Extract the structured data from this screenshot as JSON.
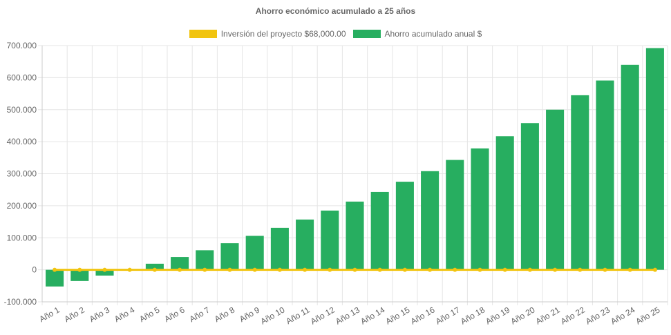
{
  "chart_data": {
    "type": "bar",
    "title": "Ahorro económico acumulado a 25 años",
    "categories": [
      "Año 1",
      "Año 2",
      "Año 3",
      "Año 4",
      "Año 5",
      "Año 6",
      "Año 7",
      "Año 8",
      "Año 9",
      "Año 10",
      "Año 11",
      "Año 12",
      "Año 13",
      "Año 14",
      "Año 15",
      "Año 16",
      "Año 17",
      "Año 18",
      "Año 19",
      "Año 20",
      "Año 21",
      "Año 22",
      "Año 23",
      "Año 24",
      "Año 25"
    ],
    "series": [
      {
        "name": "Inversión del proyecto $68,000.00",
        "type": "line",
        "color": "#f1c40f",
        "values": [
          0,
          0,
          0,
          0,
          0,
          0,
          0,
          0,
          0,
          0,
          0,
          0,
          0,
          0,
          0,
          0,
          0,
          0,
          0,
          0,
          0,
          0,
          0,
          0,
          0
        ]
      },
      {
        "name": "Ahorro acumulado anual $",
        "type": "bar",
        "color": "#27ae60",
        "values": [
          -52000,
          -35000,
          -18000,
          -1000,
          19000,
          40000,
          61000,
          83000,
          106000,
          131000,
          157000,
          185000,
          213000,
          243000,
          275000,
          308000,
          343000,
          379000,
          417000,
          458000,
          500000,
          545000,
          591000,
          640000,
          692000
        ]
      }
    ],
    "y_ticks": [
      "700.000",
      "600.000",
      "500.000",
      "400.000",
      "300.000",
      "200.000",
      "100.000",
      "0",
      "-100.000"
    ],
    "ylim": [
      -100000,
      700000
    ],
    "grid": true,
    "legend_position": "top"
  }
}
